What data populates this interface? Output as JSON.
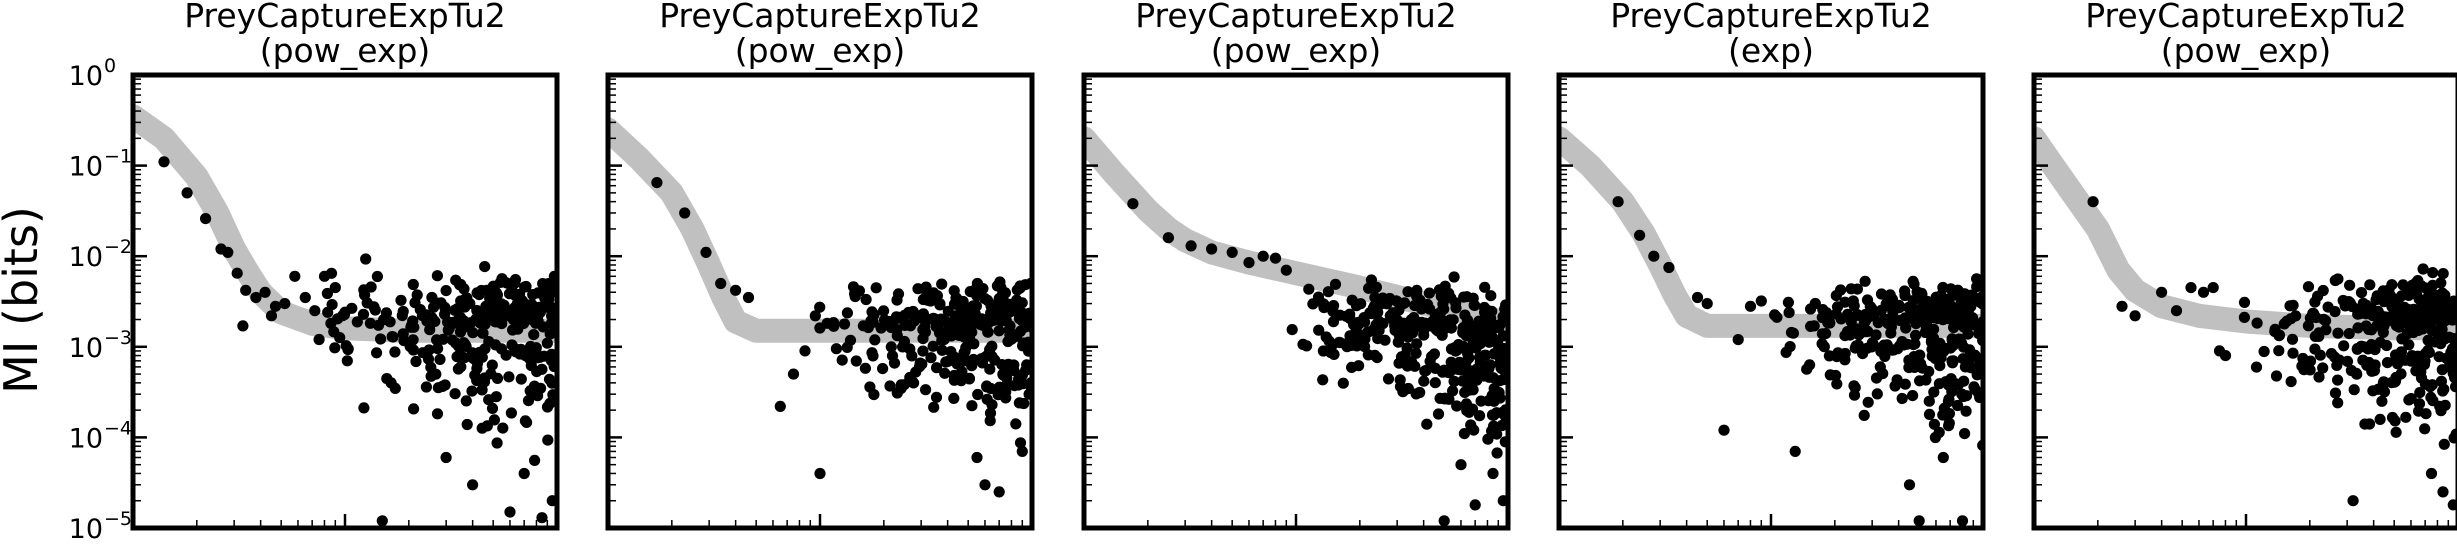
{
  "chart_data": {
    "type": "scatter",
    "ylabel": "MI (bits)",
    "yscale": "log",
    "xscale": "log",
    "ylim": [
      1e-05,
      1
    ],
    "yticks": [
      {
        "value": 1,
        "base": "10",
        "exp": "0"
      },
      {
        "value": 0.1,
        "base": "10",
        "exp": "−1"
      },
      {
        "value": 0.01,
        "base": "10",
        "exp": "−2"
      },
      {
        "value": 0.001,
        "base": "10",
        "exp": "−3"
      },
      {
        "value": 0.0001,
        "base": "10",
        "exp": "−4"
      },
      {
        "value": 1e-05,
        "base": "10",
        "exp": "−5"
      }
    ],
    "xlim": [
      1,
      100
    ],
    "grid": false,
    "point_color": "#000000",
    "fit_color": "#c0c0c0",
    "panels": [
      {
        "title_line1": "PreyCaptureExpTu2",
        "title_line2": "(pow_exp)",
        "fit": {
          "x": [
            1,
            1.4,
            2,
            2.5,
            3,
            3.5,
            4,
            5,
            7,
            10,
            20,
            50,
            100
          ],
          "y": [
            0.35,
            0.2,
            0.075,
            0.03,
            0.012,
            0.0065,
            0.004,
            0.0024,
            0.0018,
            0.0016,
            0.0015,
            0.0015,
            0.0015
          ]
        },
        "head": [
          [
            1.4,
            0.11
          ],
          [
            1.8,
            0.05
          ],
          [
            2.2,
            0.026
          ],
          [
            2.6,
            0.012
          ],
          [
            2.8,
            0.011
          ],
          [
            3.1,
            0.0065
          ],
          [
            3.4,
            0.0042
          ],
          [
            3.8,
            0.0035
          ],
          [
            4.2,
            0.004
          ],
          [
            4.7,
            0.0028
          ],
          [
            5.2,
            0.003
          ],
          [
            5.8,
            0.006
          ],
          [
            6.5,
            0.0035
          ],
          [
            7.2,
            0.0025
          ],
          [
            8,
            0.006
          ],
          [
            9,
            0.0045
          ],
          [
            3.3,
            0.0017
          ],
          [
            4.5,
            0.0022
          ]
        ],
        "cloud": {
          "x0": 5,
          "x1": 100,
          "ymed": 0.0018,
          "spread_up": 0.75,
          "spread_down": 1.9,
          "n": 320,
          "seed": 11
        },
        "outliers": [
          [
            15,
            1.2e-05
          ],
          [
            60,
            1.5e-05
          ],
          [
            85,
            1.3e-05
          ],
          [
            40,
            3e-05
          ],
          [
            70,
            4e-05
          ],
          [
            95,
            2e-05
          ],
          [
            30,
            6e-05
          ]
        ]
      },
      {
        "title_line1": "PreyCaptureExpTu2",
        "title_line2": "(pow_exp)",
        "fit": {
          "x": [
            1,
            1.4,
            2,
            2.5,
            3,
            3.5,
            4,
            5,
            7,
            10,
            20,
            50,
            100
          ],
          "y": [
            0.25,
            0.12,
            0.05,
            0.02,
            0.008,
            0.0035,
            0.0019,
            0.0015,
            0.0015,
            0.0015,
            0.0015,
            0.0015,
            0.0015
          ]
        },
        "head": [
          [
            1.7,
            0.065
          ],
          [
            2.3,
            0.03
          ],
          [
            2.9,
            0.011
          ],
          [
            3.4,
            0.005
          ],
          [
            4,
            0.0042
          ],
          [
            4.6,
            0.0035
          ],
          [
            6.5,
            0.00022
          ],
          [
            7.5,
            0.0005
          ],
          [
            8.5,
            0.0009
          ],
          [
            9.5,
            0.0022
          ]
        ],
        "cloud": {
          "x0": 8,
          "x1": 100,
          "ymed": 0.0017,
          "spread_up": 0.65,
          "spread_down": 1.8,
          "n": 310,
          "seed": 23
        },
        "outliers": [
          [
            10,
            4e-05
          ],
          [
            60,
            3e-05
          ],
          [
            70,
            2.5e-05
          ],
          [
            90,
            7e-05
          ],
          [
            55,
            6e-05
          ]
        ]
      },
      {
        "title_line1": "PreyCaptureExpTu2",
        "title_line2": "(pow_exp)",
        "fit": {
          "x": [
            1,
            1.4,
            2,
            2.5,
            3,
            4,
            6,
            10,
            20,
            40,
            70,
            100
          ],
          "y": [
            0.2,
            0.08,
            0.032,
            0.02,
            0.015,
            0.011,
            0.0085,
            0.0065,
            0.0045,
            0.003,
            0.0023,
            0.0018
          ]
        },
        "head": [
          [
            1.7,
            0.038
          ],
          [
            2.5,
            0.016
          ],
          [
            3.2,
            0.013
          ],
          [
            4,
            0.012
          ],
          [
            5,
            0.011
          ],
          [
            6,
            0.0085
          ],
          [
            7,
            0.01
          ],
          [
            8,
            0.0095
          ],
          [
            9,
            0.007
          ]
        ],
        "cloud": {
          "x0": 8,
          "x1": 100,
          "ymed": 0.0018,
          "spread_up": 0.75,
          "spread_down": 1.7,
          "n": 340,
          "seed": 37,
          "slope": -0.9
        },
        "outliers": [
          [
            50,
            1.2e-05
          ],
          [
            70,
            1.8e-05
          ],
          [
            95,
            2e-05
          ],
          [
            60,
            5e-05
          ],
          [
            85,
            4e-05
          ]
        ]
      },
      {
        "title_line1": "PreyCaptureExpTu2",
        "title_line2": "(exp)",
        "fit": {
          "x": [
            1,
            1.4,
            2,
            2.5,
            3,
            3.5,
            4,
            5,
            7,
            10,
            20,
            50,
            100
          ],
          "y": [
            0.2,
            0.1,
            0.04,
            0.018,
            0.008,
            0.0038,
            0.0022,
            0.0017,
            0.0017,
            0.0017,
            0.0017,
            0.0017,
            0.0017
          ]
        },
        "head": [
          [
            1.9,
            0.04
          ],
          [
            2.4,
            0.017
          ],
          [
            2.8,
            0.01
          ],
          [
            3.3,
            0.0075
          ],
          [
            4.5,
            0.0035
          ],
          [
            5,
            0.003
          ],
          [
            6,
            0.00012
          ],
          [
            7,
            0.0012
          ],
          [
            8,
            0.0028
          ],
          [
            9,
            0.0032
          ]
        ],
        "cloud": {
          "x0": 8,
          "x1": 100,
          "ymed": 0.0018,
          "spread_up": 0.65,
          "spread_down": 1.9,
          "n": 320,
          "seed": 53
        },
        "outliers": [
          [
            13,
            7e-05
          ],
          [
            50,
            1.2e-05
          ],
          [
            80,
            1.2e-05
          ],
          [
            45,
            3e-05
          ],
          [
            65,
            6e-05
          ]
        ]
      },
      {
        "title_line1": "PreyCaptureExpTu2",
        "title_line2": "(pow_exp)",
        "fit": {
          "x": [
            1,
            1.4,
            2,
            2.5,
            3,
            4,
            6,
            10,
            20,
            50,
            100
          ],
          "y": [
            0.2,
            0.065,
            0.02,
            0.007,
            0.0042,
            0.0028,
            0.0022,
            0.0019,
            0.0017,
            0.0016,
            0.0016
          ]
        },
        "head": [
          [
            1.9,
            0.04
          ],
          [
            2.6,
            0.0028
          ],
          [
            3,
            0.0022
          ],
          [
            4,
            0.004
          ],
          [
            4.7,
            0.0025
          ],
          [
            5.5,
            0.0045
          ],
          [
            6.3,
            0.004
          ],
          [
            7,
            0.0045
          ],
          [
            7.5,
            0.0009
          ],
          [
            8,
            0.0008
          ]
        ],
        "cloud": {
          "x0": 9,
          "x1": 100,
          "ymed": 0.0018,
          "spread_up": 0.7,
          "spread_down": 1.9,
          "n": 340,
          "seed": 71
        },
        "outliers": [
          [
            32,
            2e-05
          ],
          [
            85,
            2.5e-05
          ],
          [
            95,
            1.8e-05
          ],
          [
            75,
            4e-05
          ]
        ]
      }
    ]
  }
}
